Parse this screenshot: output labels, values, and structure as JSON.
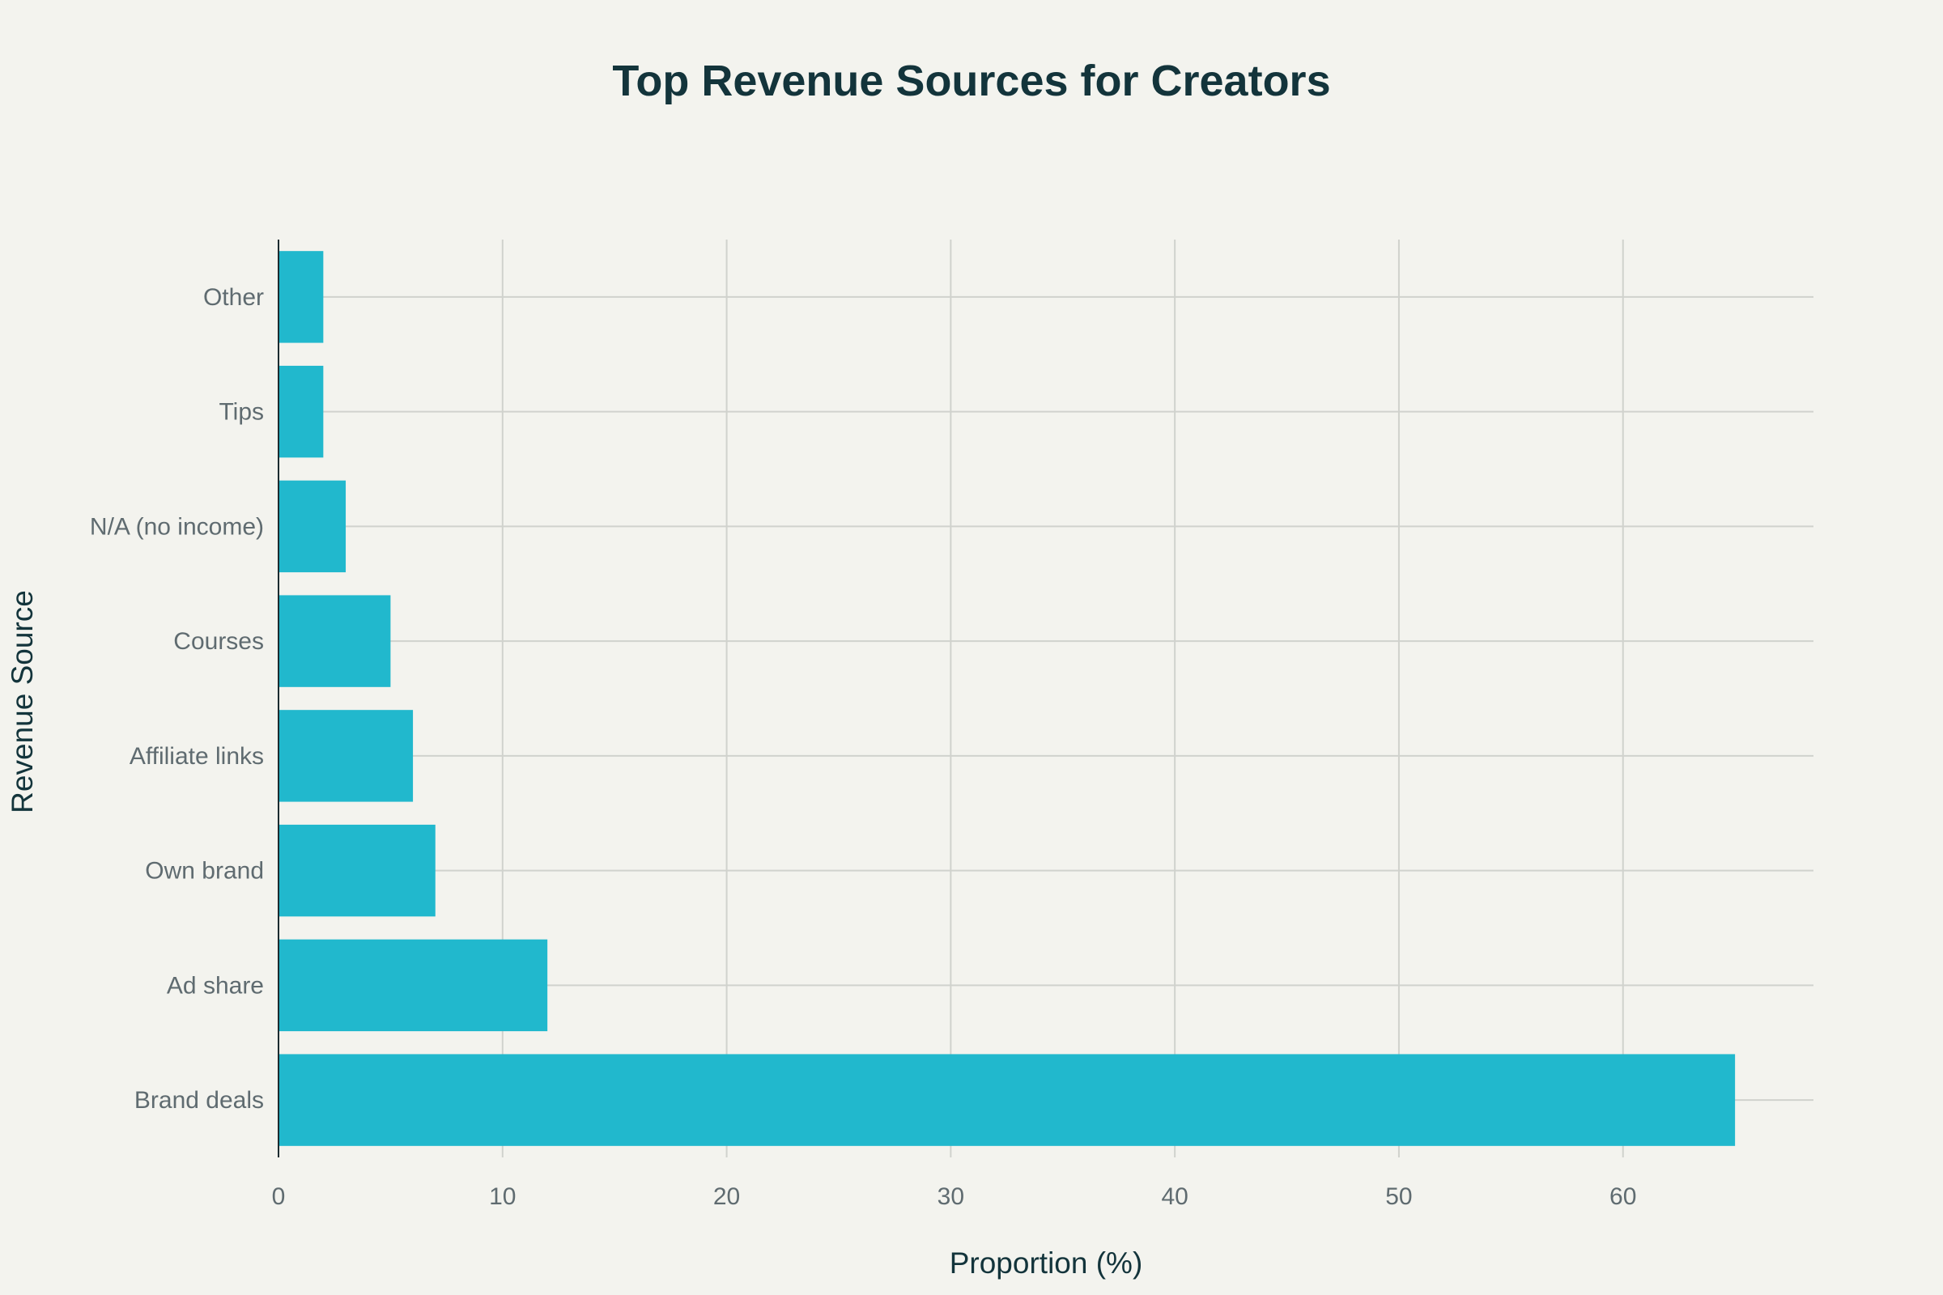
{
  "chart_data": {
    "type": "bar",
    "orientation": "horizontal",
    "title": "Top Revenue Sources for Creators",
    "xlabel": "Proportion (%)",
    "ylabel": "Revenue Source",
    "categories": [
      "Brand deals",
      "Ad share",
      "Own brand",
      "Affiliate links",
      "Courses",
      "N/A (no income)",
      "Tips",
      "Other"
    ],
    "values": [
      65,
      12,
      7,
      6,
      5,
      3,
      2,
      2
    ],
    "xlim": [
      0,
      68.5
    ],
    "xticks": [
      0,
      10,
      20,
      30,
      40,
      50,
      60
    ],
    "grid": true,
    "legend": "none",
    "bar_color": "#21b8cd"
  }
}
